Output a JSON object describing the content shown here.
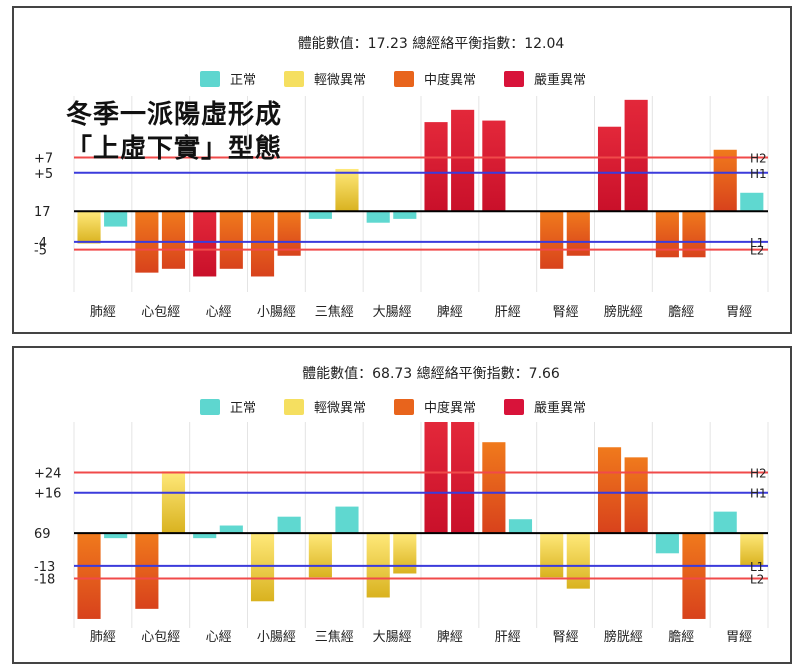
{
  "overlay_text": {
    "line1": "冬季一派陽虛形成",
    "line2": "「上虛下實」型態"
  },
  "colors": {
    "normal": "#5ed6cf",
    "mild": "#f5df60",
    "moderate": "#e8641c",
    "severe": "#d8133a",
    "threshold_red": "#f04a4a",
    "threshold_blue": "#3b3bdc",
    "grid": "#e4e4e4",
    "baseline": "#000000"
  },
  "chart_data": [
    {
      "type": "bar",
      "title": "體能數值：17.23 總經絡平衡指數：12.04",
      "legend": [
        {
          "label": "正常",
          "level": "normal"
        },
        {
          "label": "輕微異常",
          "level": "mild"
        },
        {
          "label": "中度異常",
          "level": "moderate"
        },
        {
          "label": "嚴重異常",
          "level": "severe"
        }
      ],
      "legend_position": "top",
      "categories": [
        "肺經",
        "心包經",
        "心經",
        "小腸經",
        "三焦經",
        "大腸經",
        "脾經",
        "肝經",
        "腎經",
        "膀胱經",
        "膽經",
        "胃經"
      ],
      "bars": [
        {
          "value": -4.2,
          "level": "mild"
        },
        {
          "value": -2.0,
          "level": "normal"
        },
        {
          "value": -8.0,
          "level": "moderate"
        },
        {
          "value": -7.5,
          "level": "moderate"
        },
        {
          "value": -8.5,
          "level": "severe"
        },
        {
          "value": -7.5,
          "level": "moderate"
        },
        {
          "value": -8.5,
          "level": "moderate"
        },
        {
          "value": -5.8,
          "level": "moderate"
        },
        {
          "value": -1.0,
          "level": "normal"
        },
        {
          "value": 5.5,
          "level": "mild"
        },
        {
          "value": -1.5,
          "level": "normal"
        },
        {
          "value": -1.0,
          "level": "normal"
        },
        {
          "value": 11.6,
          "level": "severe"
        },
        {
          "value": 13.2,
          "level": "severe"
        },
        {
          "value": 11.8,
          "level": "severe"
        },
        {
          "value": 0,
          "level": "normal"
        },
        {
          "value": -7.5,
          "level": "moderate"
        },
        {
          "value": -5.8,
          "level": "moderate"
        },
        {
          "value": 11.0,
          "level": "severe"
        },
        {
          "value": 14.5,
          "level": "severe"
        },
        {
          "value": -6.0,
          "level": "moderate"
        },
        {
          "value": -6.0,
          "level": "moderate"
        },
        {
          "value": 8.0,
          "level": "moderate"
        },
        {
          "value": 2.4,
          "level": "normal"
        }
      ],
      "ylim": [
        -10,
        15
      ],
      "baseline_label": "17",
      "thresholds": [
        {
          "value": 7,
          "label": "+7",
          "right_label": "H2",
          "color": "red"
        },
        {
          "value": 5,
          "label": "+5",
          "right_label": "H1",
          "color": "blue"
        },
        {
          "value": -4,
          "label": "-4",
          "right_label": "L1",
          "color": "blue"
        },
        {
          "value": -5,
          "label": "-5",
          "right_label": "L2",
          "color": "red"
        }
      ]
    },
    {
      "type": "bar",
      "title": "體能數值：68.73 總經絡平衡指數：7.66",
      "legend": [
        {
          "label": "正常",
          "level": "normal"
        },
        {
          "label": "輕微異常",
          "level": "mild"
        },
        {
          "label": "中度異常",
          "level": "moderate"
        },
        {
          "label": "嚴重異常",
          "level": "severe"
        }
      ],
      "legend_position": "top",
      "categories": [
        "肺經",
        "心包經",
        "心經",
        "小腸經",
        "三焦經",
        "大腸經",
        "脾經",
        "肝經",
        "腎經",
        "膀胱經",
        "膽經",
        "胃經"
      ],
      "bars": [
        {
          "value": -34,
          "level": "moderate"
        },
        {
          "value": -2,
          "level": "normal"
        },
        {
          "value": -30,
          "level": "moderate"
        },
        {
          "value": 24.5,
          "level": "mild"
        },
        {
          "value": -2,
          "level": "normal"
        },
        {
          "value": 3,
          "level": "normal"
        },
        {
          "value": -27,
          "level": "mild"
        },
        {
          "value": 6.5,
          "level": "normal"
        },
        {
          "value": -17.5,
          "level": "mild"
        },
        {
          "value": 10.5,
          "level": "normal"
        },
        {
          "value": -25.5,
          "level": "mild"
        },
        {
          "value": -16,
          "level": "mild"
        },
        {
          "value": 44,
          "level": "severe"
        },
        {
          "value": 44,
          "level": "severe"
        },
        {
          "value": 36,
          "level": "moderate"
        },
        {
          "value": 5.5,
          "level": "normal"
        },
        {
          "value": -17.5,
          "level": "mild"
        },
        {
          "value": -22,
          "level": "mild"
        },
        {
          "value": 34,
          "level": "moderate"
        },
        {
          "value": 30,
          "level": "moderate"
        },
        {
          "value": -8,
          "level": "normal"
        },
        {
          "value": -34,
          "level": "moderate"
        },
        {
          "value": 8.5,
          "level": "normal"
        },
        {
          "value": -13,
          "level": "mild"
        }
      ],
      "ylim": [
        -36,
        44
      ],
      "baseline_label": "69",
      "thresholds": [
        {
          "value": 24,
          "label": "+24",
          "right_label": "H2",
          "color": "red"
        },
        {
          "value": 16,
          "label": "+16",
          "right_label": "H1",
          "color": "blue"
        },
        {
          "value": -13,
          "label": "-13",
          "right_label": "L1",
          "color": "blue"
        },
        {
          "value": -18,
          "label": "-18",
          "right_label": "L2",
          "color": "red"
        }
      ]
    }
  ]
}
